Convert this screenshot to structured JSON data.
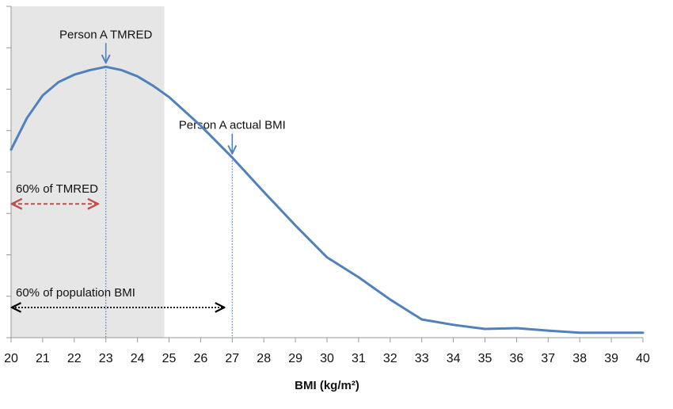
{
  "chart_data": {
    "type": "line",
    "xlabel": "BMI (kg/m²)",
    "x": [
      20,
      20.5,
      21,
      21.5,
      22,
      22.5,
      23,
      23.5,
      24,
      24.5,
      25,
      26,
      27,
      28,
      29,
      30,
      31,
      32,
      33,
      34,
      35,
      36,
      37,
      38,
      39,
      40
    ],
    "series": [
      {
        "color": "#4f81bd",
        "values": [
          4.54,
          5.3,
          5.85,
          6.17,
          6.35,
          6.46,
          6.54,
          6.46,
          6.31,
          6.08,
          5.81,
          5.12,
          4.35,
          3.52,
          2.71,
          1.94,
          1.46,
          0.92,
          0.44,
          0.31,
          0.21,
          0.23,
          0.17,
          0.12,
          0.12,
          0.12
        ]
      }
    ],
    "xlim": [
      20,
      40
    ],
    "xticks": [
      20,
      21,
      22,
      23,
      24,
      25,
      26,
      27,
      28,
      29,
      30,
      31,
      32,
      33,
      34,
      35,
      36,
      37,
      38,
      39,
      40
    ],
    "ylim": [
      0,
      8
    ],
    "yticks": [
      0,
      1,
      2,
      3,
      4,
      5,
      6,
      7,
      8
    ],
    "shaded_region": {
      "from": 20,
      "to": 24.85,
      "color": "#e6e6e6"
    },
    "markers": [
      {
        "text": "Person A TMRED",
        "x": 23,
        "y": 6.54
      },
      {
        "text": "Person A actual BMI",
        "x": 27,
        "y": 4.35
      }
    ],
    "ranges": [
      {
        "text": "60% of TMRED",
        "from": 20,
        "to": 23,
        "y": 3.23,
        "color": "#c0504d",
        "dash": "dashed"
      },
      {
        "text": "60% of population BMI",
        "from": 20,
        "to": 27,
        "y": 0.73,
        "color": "#000000",
        "dash": "dotted"
      }
    ]
  }
}
